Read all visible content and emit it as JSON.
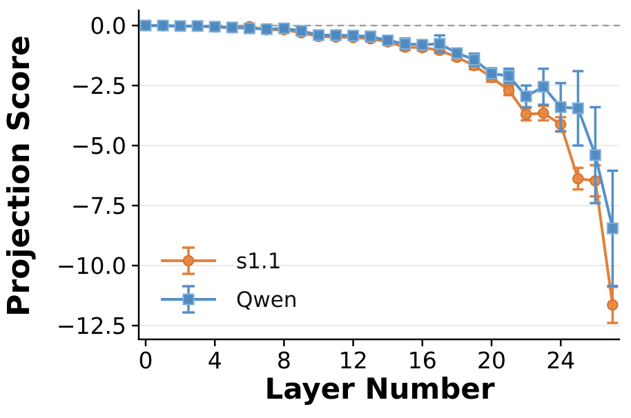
{
  "figure": {
    "background": "#ffffff",
    "spine_color": "#000000",
    "grid_color": "#e3e3e3",
    "zero_line_color": "#9a9a9a"
  },
  "x_axis": {
    "label": "Layer Number",
    "ticks": [
      {
        "label": "0",
        "value": 0
      },
      {
        "label": "4",
        "value": 4
      },
      {
        "label": "8",
        "value": 8
      },
      {
        "label": "12",
        "value": 12
      },
      {
        "label": "16",
        "value": 16
      },
      {
        "label": "20",
        "value": 20
      },
      {
        "label": "24",
        "value": 24
      }
    ]
  },
  "y_axis": {
    "label": "Projection Score",
    "ticks": [
      {
        "label": "0.0",
        "value": 0
      },
      {
        "label": "−2.5",
        "value": -2.5
      },
      {
        "label": "−5.0",
        "value": -5.0
      },
      {
        "label": "−7.5",
        "value": -7.5
      },
      {
        "label": "−10.0",
        "value": -10.0
      },
      {
        "label": "−12.5",
        "value": -12.5
      }
    ]
  },
  "chart_data": {
    "type": "line",
    "title": "",
    "xlabel": "Layer Number",
    "ylabel": "Projection Score",
    "x": [
      0,
      1,
      2,
      3,
      4,
      5,
      6,
      7,
      8,
      9,
      10,
      11,
      12,
      13,
      14,
      15,
      16,
      17,
      18,
      19,
      20,
      21,
      22,
      23,
      24,
      25,
      26,
      27
    ],
    "xlim": [
      -0.5,
      27.4
    ],
    "ylim": [
      -13.0,
      0.65
    ],
    "grid": "horizontal",
    "zero_line": {
      "style": "dashed",
      "value": 0
    },
    "legend_position": "lower left",
    "series": [
      {
        "name": "s1.1",
        "marker": "circle",
        "color": "#e0813c",
        "marker_fill": "#e8873f",
        "marker_edge": "#d4712c",
        "values": [
          0.0,
          -0.02,
          -0.03,
          -0.03,
          -0.06,
          -0.1,
          -0.05,
          -0.18,
          -0.18,
          -0.3,
          -0.46,
          -0.48,
          -0.5,
          -0.55,
          -0.68,
          -0.9,
          -0.92,
          -1.03,
          -1.32,
          -1.67,
          -2.16,
          -2.7,
          -3.7,
          -3.65,
          -4.12,
          -6.38,
          -6.47,
          -11.64
        ],
        "errors": [
          0.04,
          0.04,
          0.04,
          0.04,
          0.04,
          0.04,
          0.05,
          0.05,
          0.06,
          0.06,
          0.08,
          0.08,
          0.08,
          0.1,
          0.1,
          0.12,
          0.12,
          0.12,
          0.12,
          0.15,
          0.18,
          0.2,
          0.25,
          0.3,
          0.3,
          0.45,
          0.65,
          0.75
        ]
      },
      {
        "name": "Qwen",
        "marker": "square",
        "color": "#5590c8",
        "marker_fill": "#4e8ac2",
        "marker_edge": "#7fb0da",
        "values": [
          0.0,
          0.0,
          -0.02,
          -0.02,
          -0.05,
          -0.08,
          -0.12,
          -0.15,
          -0.12,
          -0.22,
          -0.4,
          -0.4,
          -0.42,
          -0.46,
          -0.62,
          -0.76,
          -0.8,
          -0.76,
          -1.15,
          -1.42,
          -2.0,
          -2.1,
          -2.95,
          -2.55,
          -3.4,
          -3.45,
          -5.4,
          -8.45
        ],
        "errors": [
          0.05,
          0.05,
          0.05,
          0.05,
          0.05,
          0.06,
          0.07,
          0.08,
          0.08,
          0.08,
          0.1,
          0.1,
          0.12,
          0.2,
          0.15,
          0.22,
          0.18,
          0.35,
          0.18,
          0.25,
          0.22,
          0.3,
          0.45,
          0.75,
          1.0,
          1.55,
          2.0,
          2.4
        ]
      }
    ]
  }
}
